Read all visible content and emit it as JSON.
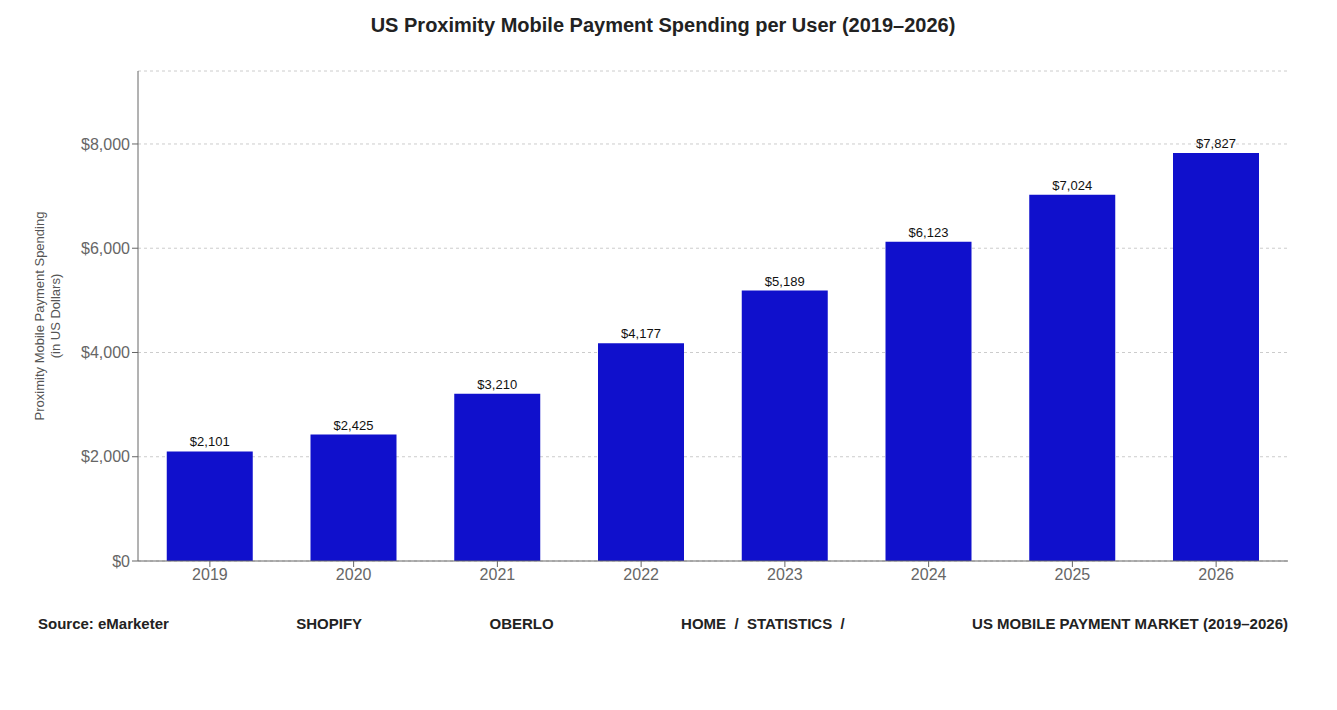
{
  "chart_data": {
    "type": "bar",
    "title": "US Proximity Mobile Payment Spending per User (2019–2026)",
    "ylabel": "Proximity Mobile Payment Spending\n(in US Dollars)",
    "categories": [
      "2019",
      "2020",
      "2021",
      "2022",
      "2023",
      "2024",
      "2025",
      "2026"
    ],
    "values": [
      2101,
      2425,
      3210,
      4177,
      5189,
      6123,
      7024,
      7827
    ],
    "value_labels": [
      "$2,101",
      "$2,425",
      "$3,210",
      "$4,177",
      "$5,189",
      "$6,123",
      "$7,024",
      "$7,827"
    ],
    "data_labels": true,
    "color": "#1010cc",
    "ylim": [
      0,
      9400
    ],
    "yticks": [
      {
        "value": 0,
        "label": "$0"
      },
      {
        "value": 2000,
        "label": "$2,000"
      },
      {
        "value": 4000,
        "label": "$4,000"
      },
      {
        "value": 6000,
        "label": "$6,000"
      },
      {
        "value": 8000,
        "label": "$8,000"
      }
    ],
    "grid": true,
    "annotations": [
      "Source: eMarketer",
      "SHOPIFY",
      "OBERLO",
      "HOME  /  STATISTICS  /",
      "US MOBILE PAYMENT MARKET (2019–2026)"
    ]
  }
}
